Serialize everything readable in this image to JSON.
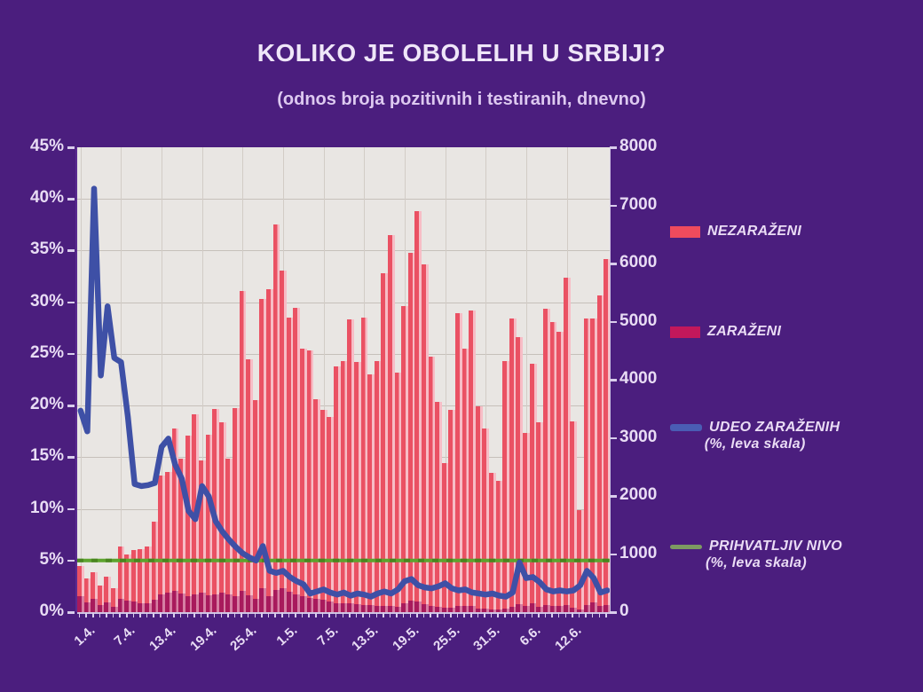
{
  "title": "KOLIKO JE OBOLELIH U SRBIJI?",
  "subtitle": "(odnos broja pozitivnih i testiranih, dnevno)",
  "colors": {
    "background": "#4b1e7e",
    "plot_background": "#e9e6e3",
    "gridline": "#c6c0ba",
    "axis_text": "#e8dcf4",
    "bar_negative": "#ea5163",
    "bar_negative_light": "#f7bdc6",
    "bar_positive": "#a81a5c",
    "bar_positive_light": "#d67fa3",
    "line_share": "#3e50a6",
    "line_acceptable": "#5da32e",
    "line_acceptable_dark": "#49851f",
    "legend_swatch_negative": "#ef4b5d",
    "legend_swatch_positive": "#c2185b",
    "legend_swatch_share": "#4a5db4",
    "legend_swatch_acceptable": "#7d9a62"
  },
  "legend": {
    "items": [
      {
        "label": "NEZARAŽENI"
      },
      {
        "label": "ZARAŽENI"
      },
      {
        "label": "UDEO ZARAŽENIH",
        "label2": "(%, leva skala)"
      },
      {
        "label": "PRIHVATLJIV NIVO",
        "label2": "(%, leva skala)"
      }
    ]
  },
  "chart_data": {
    "type": "bar+line",
    "title": "KOLIKO JE OBOLELIH U SRBIJI?",
    "subtitle": "(odnos broja pozitivnih i testiranih, dnevno)",
    "legend_position": "right",
    "grid": true,
    "left_axis": {
      "min": 0,
      "max": 45,
      "step": 5,
      "unit": "%",
      "labels": [
        "0%",
        "5%",
        "10%",
        "15%",
        "20%",
        "25%",
        "30%",
        "35%",
        "40%",
        "45%"
      ]
    },
    "right_axis": {
      "min": 0,
      "max": 8000,
      "step": 1000,
      "labels": [
        "0",
        "1000",
        "2000",
        "3000",
        "4000",
        "5000",
        "6000",
        "7000",
        "8000"
      ]
    },
    "x_ticks": {
      "days": [
        1,
        7,
        13,
        19,
        25,
        31,
        37,
        43,
        49,
        55,
        61,
        67,
        73
      ],
      "labels": [
        "1.4.",
        "7.4.",
        "13.4.",
        "19.4.",
        "25.4.",
        "1.5.",
        "7.5.",
        "13.5.",
        "19.5.",
        "25.5.",
        "31.5.",
        "6.6.",
        "12.6."
      ]
    },
    "dates": [
      "1.4.",
      "2.4.",
      "3.4.",
      "4.4.",
      "5.4.",
      "6.4.",
      "7.4.",
      "8.4.",
      "9.4.",
      "10.4.",
      "11.4.",
      "12.4.",
      "13.4.",
      "14.4.",
      "15.4.",
      "16.4.",
      "17.4.",
      "18.4.",
      "19.4.",
      "20.4.",
      "21.4.",
      "22.4.",
      "23.4.",
      "24.4.",
      "25.4.",
      "26.4.",
      "27.4.",
      "28.4.",
      "29.4.",
      "30.4.",
      "1.5.",
      "2.5.",
      "3.5.",
      "4.5.",
      "5.5.",
      "6.5.",
      "7.5.",
      "8.5.",
      "9.5.",
      "10.5.",
      "11.5.",
      "12.5.",
      "13.5.",
      "14.5.",
      "15.5.",
      "16.5.",
      "17.5.",
      "18.5.",
      "19.5.",
      "20.5.",
      "21.5.",
      "22.5.",
      "23.5.",
      "24.5.",
      "25.5.",
      "26.5.",
      "27.5.",
      "28.5.",
      "29.5.",
      "30.5.",
      "31.5.",
      "1.6.",
      "2.6.",
      "3.6.",
      "4.6.",
      "5.6.",
      "6.6.",
      "7.6.",
      "8.6.",
      "9.6.",
      "10.6.",
      "11.6.",
      "12.6.",
      "13.6.",
      "14.6.",
      "15.6.",
      "16.6.",
      "17.6.",
      "18.6."
    ],
    "series": [
      {
        "name": "NEZARAŽENI",
        "type": "bar",
        "axis": "right",
        "values": [
          800,
          585,
          690,
          460,
          610,
          420,
          1135,
          1000,
          1070,
          1080,
          1130,
          1550,
          2350,
          2420,
          3160,
          2640,
          3040,
          3410,
          2610,
          3050,
          3500,
          3260,
          2640,
          3510,
          5520,
          4350,
          3650,
          5390,
          5560,
          6670,
          5880,
          5070,
          5240,
          4530,
          4500,
          3660,
          3480,
          3360,
          4230,
          4320,
          5040,
          4310,
          5070,
          4090,
          4320,
          5830,
          6490,
          4120,
          5270,
          6180,
          6900,
          5980,
          4400,
          3620,
          2570,
          3480,
          5140,
          4530,
          5190,
          3540,
          3160,
          2400,
          2260,
          4320,
          5060,
          4730,
          3080,
          4270,
          3260,
          5220,
          4990,
          4830,
          5750,
          3280,
          1760,
          5060,
          5050,
          5450,
          6080
        ]
      },
      {
        "name": "ZARAŽENI",
        "type": "bar",
        "axis": "right",
        "values": [
          270,
          165,
          230,
          120,
          170,
          90,
          230,
          205,
          190,
          150,
          155,
          220,
          310,
          330,
          370,
          320,
          280,
          300,
          330,
          290,
          310,
          340,
          310,
          280,
          360,
          290,
          230,
          420,
          280,
          380,
          410,
          350,
          300,
          280,
          250,
          230,
          210,
          180,
          160,
          150,
          160,
          140,
          130,
          120,
          110,
          100,
          110,
          95,
          160,
          200,
          185,
          145,
          100,
          90,
          75,
          80,
          110,
          100,
          100,
          65,
          55,
          45,
          35,
          65,
          95,
          140,
          105,
          150,
          95,
          115,
          100,
          105,
          115,
          70,
          45,
          120,
          170,
          110,
          130
        ]
      },
      {
        "name": "UDEO ZARAŽENIH (%, leva skala)",
        "type": "line",
        "axis": "left",
        "values": [
          19.5,
          17.5,
          41.0,
          22.9,
          29.6,
          24.6,
          24.2,
          18.9,
          12.4,
          12.2,
          12.3,
          12.5,
          16.0,
          16.8,
          14.3,
          12.9,
          9.8,
          9.0,
          12.2,
          11.2,
          8.8,
          7.8,
          7.0,
          6.3,
          5.7,
          5.3,
          5.0,
          6.4,
          4.0,
          3.8,
          4.0,
          3.4,
          3.0,
          2.7,
          1.8,
          2.0,
          2.2,
          1.9,
          1.7,
          1.9,
          1.6,
          1.8,
          1.7,
          1.5,
          1.8,
          2.0,
          1.8,
          2.2,
          3.0,
          3.2,
          2.6,
          2.4,
          2.3,
          2.5,
          2.8,
          2.3,
          2.1,
          2.2,
          1.9,
          1.8,
          1.7,
          1.8,
          1.6,
          1.5,
          1.9,
          4.8,
          3.3,
          3.4,
          2.9,
          2.2,
          2.0,
          2.1,
          2.0,
          2.1,
          2.6,
          4.0,
          3.3,
          1.9,
          2.1
        ]
      },
      {
        "name": "PRIHVATLJIV NIVO (%, leva skala)",
        "type": "hline",
        "axis": "left",
        "value": 5
      }
    ]
  }
}
